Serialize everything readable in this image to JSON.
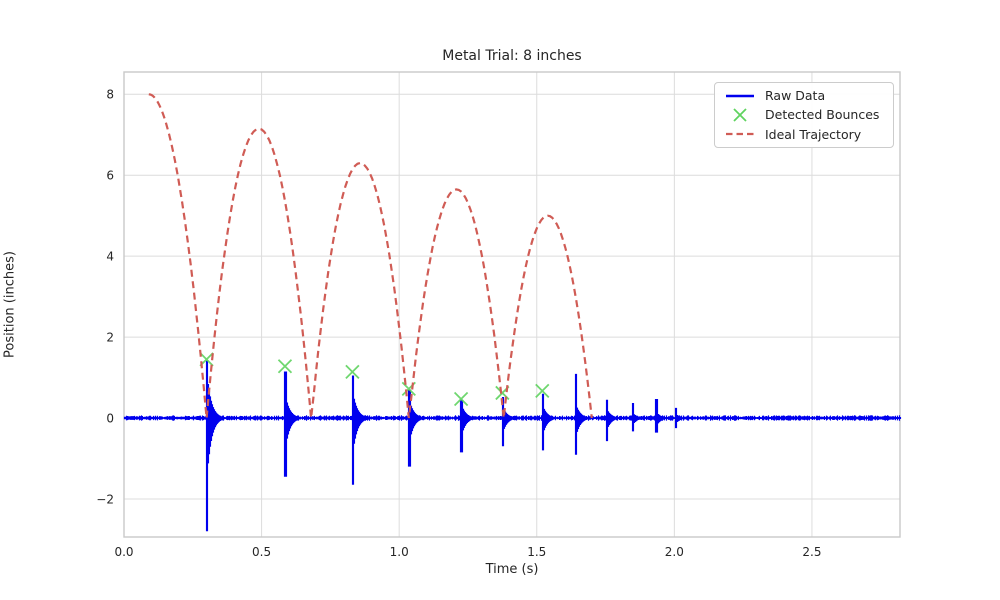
{
  "figure": {
    "title": "Metal Trial: 8 inches",
    "xlabel": "Time (s)",
    "ylabel": "Position (inches)"
  },
  "legend": {
    "position": "upper right",
    "entries": [
      {
        "label": "Raw Data",
        "glyph": "solid-line",
        "color": "#0000ee"
      },
      {
        "label": "Detected Bounces",
        "glyph": "x-marker",
        "color": "#5fd35f"
      },
      {
        "label": "Ideal Trajectory",
        "glyph": "dashed-line",
        "color": "#d05c55"
      }
    ]
  },
  "chart_data": {
    "type": "line",
    "title": "Metal Trial: 8 inches",
    "xlabel": "Time (s)",
    "ylabel": "Position (inches)",
    "xlim": [
      0,
      2.82
    ],
    "ylim": [
      -2.94,
      8.55
    ],
    "grid": true,
    "xticks": {
      "values": [
        0.0,
        0.5,
        1.0,
        1.5,
        2.0,
        2.5
      ],
      "labels": [
        "0.0",
        "0.5",
        "1.0",
        "1.5",
        "2.0",
        "2.5"
      ]
    },
    "yticks": {
      "values": [
        -2,
        0,
        2,
        4,
        6,
        8
      ],
      "labels": [
        "−2",
        "0",
        "2",
        "4",
        "6",
        "8"
      ]
    },
    "colors": {
      "raw_data": "#0000ee",
      "detected_bounces": "#5fd35f",
      "ideal_trajectory": "#d05c55",
      "grid": "#dcdcdc",
      "spine": "#c9c9c9",
      "text": "#262626"
    },
    "series": {
      "raw_data": {
        "name": "Raw Data",
        "baseline": 0.0,
        "noise_amplitude": 0.045,
        "t_end": 2.82,
        "impact_spikes": [
          {
            "t": 0.3,
            "up": 1.42,
            "down": -2.8
          },
          {
            "t": 0.585,
            "up": 1.15,
            "down": -1.45
          },
          {
            "t": 0.83,
            "up": 1.05,
            "down": -1.65
          },
          {
            "t": 1.035,
            "up": 0.7,
            "down": -1.2
          },
          {
            "t": 1.225,
            "up": 0.45,
            "down": -0.85
          },
          {
            "t": 1.375,
            "up": 0.52,
            "down": -0.7
          },
          {
            "t": 1.52,
            "up": 0.6,
            "down": -0.8
          },
          {
            "t": 1.64,
            "up": 1.09,
            "down": -0.91
          },
          {
            "t": 1.753,
            "up": 0.45,
            "down": -0.57
          },
          {
            "t": 1.847,
            "up": 0.37,
            "down": -0.33
          },
          {
            "t": 1.934,
            "up": 0.47,
            "down": -0.36
          },
          {
            "t": 2.004,
            "up": 0.25,
            "down": -0.25
          }
        ]
      },
      "detected_bounces": {
        "name": "Detected Bounces",
        "points": [
          {
            "t": 0.3,
            "y": 1.45
          },
          {
            "t": 0.585,
            "y": 1.28
          },
          {
            "t": 0.83,
            "y": 1.14
          },
          {
            "t": 1.035,
            "y": 0.72
          },
          {
            "t": 1.225,
            "y": 0.47
          },
          {
            "t": 1.375,
            "y": 0.62
          },
          {
            "t": 1.52,
            "y": 0.67
          }
        ]
      },
      "ideal_trajectory": {
        "name": "Ideal Trajectory",
        "drop_start": {
          "t": 0.09,
          "y": 8.0
        },
        "arcs": [
          {
            "t_start": 0.09,
            "t_apex": 0.09,
            "t_end": 0.3,
            "peak": 8.0
          },
          {
            "t_start": 0.3,
            "t_apex": 0.49,
            "t_end": 0.68,
            "peak": 7.15
          },
          {
            "t_start": 0.68,
            "t_apex": 0.858,
            "t_end": 1.035,
            "peak": 6.3
          },
          {
            "t_start": 1.035,
            "t_apex": 1.208,
            "t_end": 1.38,
            "peak": 5.65
          },
          {
            "t_start": 1.38,
            "t_apex": 1.54,
            "t_end": 1.7,
            "peak": 5.0
          }
        ]
      }
    }
  }
}
